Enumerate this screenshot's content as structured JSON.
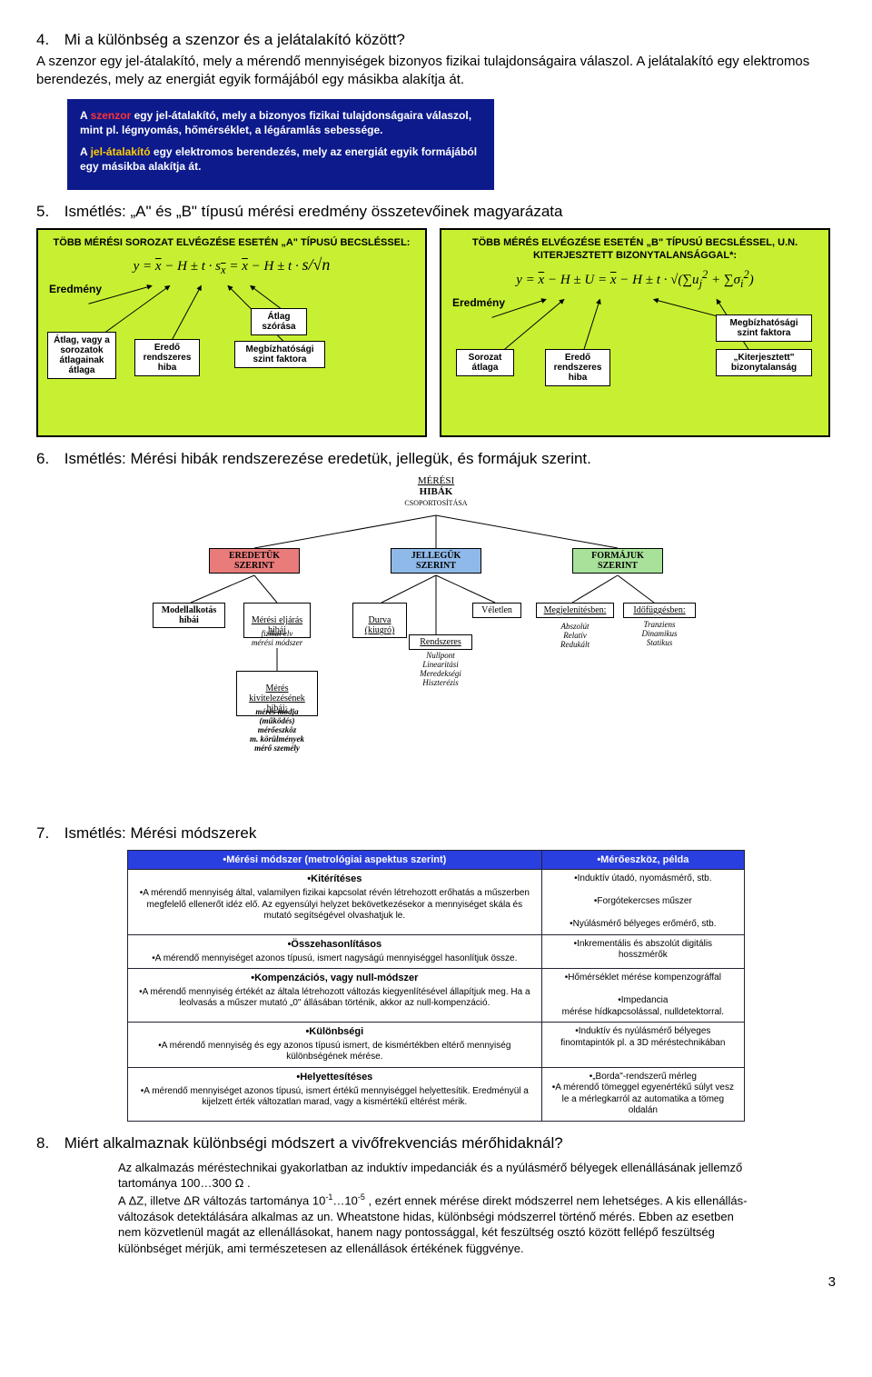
{
  "q4": {
    "num": "4.",
    "title": "Mi a különbség a szenzor és a jelátalakító között?",
    "answer": "A szenzor egy jel-átalakító, mely a mérendő mennyiségek bizonyos fizikai tulajdonságaira válaszol. A jelátalakító egy elektromos berendezés, mely az energiát egyik formájából egy másikba alakítja át.",
    "bluebox": {
      "p1a": "A ",
      "p1b": "szenzor",
      "p1c": " egy jel-átalakító, mely a bizonyos fizikai tulajdonságaira válaszol, mint pl. légnyomás, hőmérséklet, a légáramlás sebessége.",
      "p2a": "A ",
      "p2b": "jel-átalakító",
      "p2c": " egy elektromos berendezés, mely az energiát egyik formájából egy másikba alakítja át."
    }
  },
  "q5": {
    "num": "5.",
    "title": "Ismétlés: „A\" és „B\" típusú mérési eredmény összetevőinek magyarázata",
    "panelA": {
      "title": "TÖBB MÉRÉSI SOROZAT ELVÉGZÉSE ESETÉN „A\" TÍPUSÚ BECSLÉSSEL:",
      "formula_html": "y = <span class='ovl'>x</span> − H ± t · s<sub><span class='ovl'>x</span></sub> = <span class='ovl'>x</span> − H ± t · <span style='font-size:18px'>s/√n</span>",
      "root": "Eredmény",
      "l1": "Átlag, vagy a sorozatok átlagainak átlaga",
      "l2": "Eredő rendszeres hiba",
      "l3": "Átlag szórása",
      "l4": "Megbízhatósági szint faktora"
    },
    "panelB": {
      "title": "TÖBB MÉRÉS ELVÉGZÉSE ESETÉN „B\" TÍPUSÚ BECSLÉSSEL, U.N. KITERJESZTETT BIZONYTALANSÁGGAL*:",
      "formula_html": "y = <span class='ovl'>x</span> − H ± U = <span class='ovl'>x</span> − H ± t · √(∑u<sub>j</sub><sup>2</sup> + ∑σ<sub>i</sub><sup>2</sup>)",
      "root": "Eredmény",
      "l1": "Sorozat átlaga",
      "l2": "Eredő rendszeres hiba",
      "l3": "Megbízhatósági szint faktora",
      "l4": "„Kiterjesztett\" bizonytalanság"
    }
  },
  "q6": {
    "num": "6.",
    "title": "Ismétlés: Mérési hibák rendszerezése eredetük, jellegük, és formájuk szerint.",
    "root1": "MÉRÉSI",
    "root2": "HIBÁK",
    "root3": "CSOPORTOSÍTÁSA",
    "c1": "EREDETÜK\nSZERINT",
    "c2": "JELLEGÜK\nSZERINT",
    "c3": "FORMÁJUK\nSZERINT",
    "n_model": "Modellalkotás\nhibái",
    "n_meth": "Mérési eljárás\nhibái",
    "n_meth_sub": "fizikai elv\nmérési módszer",
    "n_exec": "Mérés\nkivitelezésének\nhibái:",
    "n_exec_sub": "mérés módja\n(működés)\nmérőeszköz\nm. körülmények\nmérő személy",
    "n_durva": "Durva\n(kiugró)",
    "n_rend": "Rendszeres",
    "n_rend_sub": "Nullpont\nLinearitási\nMeredekségi\nHiszterézis",
    "n_vel": "Véletlen",
    "n_meg": "Megjelenítésben:",
    "n_meg_sub": "Abszolút\nRelatív\nRedukált",
    "n_ido": "Időfüggésben:",
    "n_ido_sub": "Tranziens\nDinamikus\nStatikus"
  },
  "q7": {
    "num": "7.",
    "title": "Ismétlés: Mérési módszerek",
    "h1": "•Mérési módszer (metrológiai aspektus szerint)",
    "h2": "•Mérőeszköz, példa",
    "rows": [
      {
        "lh": "•Kitérítéses",
        "l": "•A mérendő mennyiség által, valamilyen fizikai kapcsolat révén létrehozott erőhatás a műszerben megfelelő ellenerőt idéz elő. Az egyensúlyi helyzet bekövetkezésekor a mennyiséget skála és mutató segítségével olvashatjuk le.",
        "r": "•Induktív útadó, nyomásmérő, stb.\n\n•Forgótekercses műszer\n\n•Nyúlásmérő bélyeges erőmérő, stb."
      },
      {
        "lh": "•Összehasonlításos",
        "l": "•A mérendő mennyiséget azonos típusú, ismert nagyságú mennyiséggel hasonlítjuk össze.",
        "r": "•Inkrementális és abszolút digitális hosszmérők"
      },
      {
        "lh": "•Kompenzációs, vagy null-módszer",
        "l": "•A mérendő mennyiség értékét az általa létrehozott változás kiegyenlítésével állapítjuk meg. Ha a leolvasás a műszer mutató „0\" állásában történik, akkor az null-kompenzáció.",
        "r": "•Hőmérséklet mérése kompenzográffal\n\n•Impedancia\nmérése hídkapcsolással, nulldetektorral."
      },
      {
        "lh": "•Különbségi",
        "l": "•A mérendő mennyiség és egy azonos típusú ismert, de kismértékben eltérő mennyiség különbségének mérése.",
        "r": "•Induktív és nyúlásmérő bélyeges finomtapintók pl. a 3D méréstechnikában"
      },
      {
        "lh": "•Helyettesítéses",
        "l": "•A mérendő mennyiséget azonos típusú, ismert értékű mennyiséggel helyettesítik. Eredményül a kijelzett érték változatlan marad, vagy a kismértékű eltérést mérik.",
        "r": "•„Borda\"-rendszerű mérleg\n•A mérendő tömeggel egyenértékű súlyt vesz le a mérlegkarról az automatika a tömeg oldalán"
      }
    ]
  },
  "q8": {
    "num": "8.",
    "title": "Miért alkalmaznak különbségi módszert a vivőfrekvenciás mérőhidaknál?",
    "body_html": "Az alkalmazás méréstechnikai gyakorlatban az induktív impedanciák és a nyúlásmérő bélyegek ellenállásának jellemző tartománya 100…300 Ω .<br>A ΔZ, illetve ΔR változás tartománya 10<span class='sup'>-1</span>…10<span class='sup'>-5</span> , ezért ennek mérése direkt módszerrel nem lehetséges. A kis ellenállás-változások detektálására alkalmas az un. Wheatstone hidas, különbségi módszerrel történő mérés. Ebben az esetben nem közvetlenül magát az ellenállásokat, hanem nagy pontossággal, két feszültség osztó között fellépő feszültség különbséget mérjük, ami természetesen az ellenállások értékének függvénye."
  },
  "pagenum": "3"
}
